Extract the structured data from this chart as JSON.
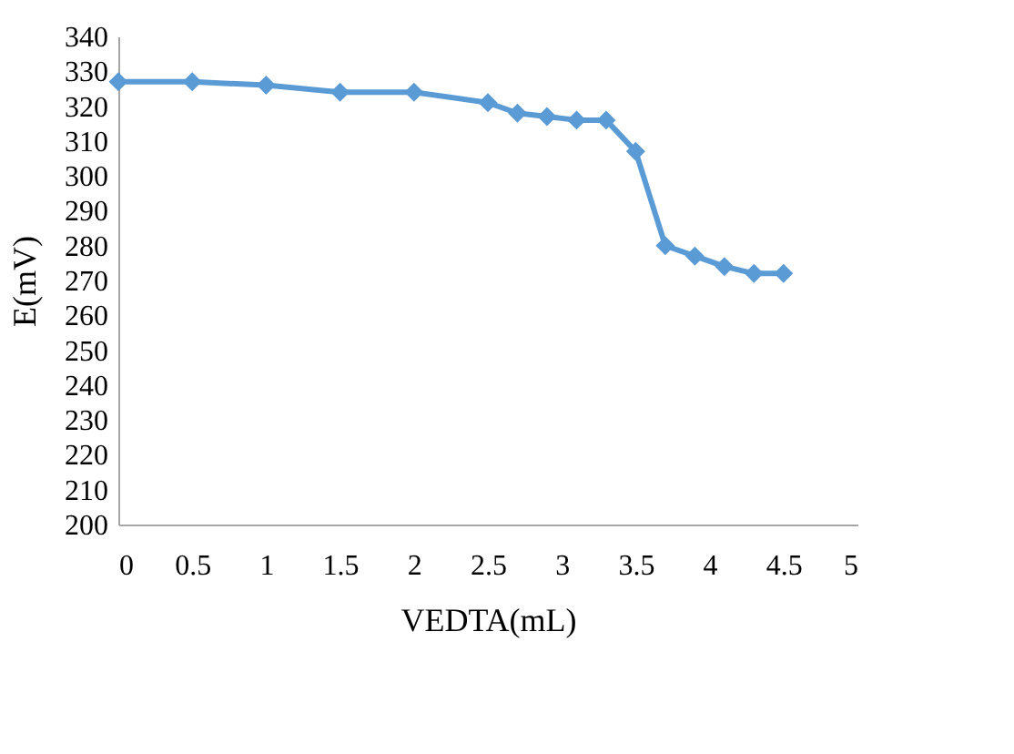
{
  "chart_data": {
    "type": "line",
    "xlabel": "VEDTA(mL)",
    "ylabel": "E(mV)",
    "x": [
      0,
      0.5,
      1,
      1.5,
      2,
      2.5,
      2.7,
      2.9,
      3.1,
      3.3,
      3.5,
      3.7,
      3.9,
      4.1,
      4.3,
      4.5
    ],
    "series": [
      {
        "color": "#5b9bd5",
        "values": [
          327,
          327,
          326,
          324,
          324,
          321,
          318,
          317,
          316,
          316,
          307,
          280,
          277,
          274,
          272,
          272
        ]
      }
    ],
    "xlim": [
      0,
      5
    ],
    "xticks": [
      0,
      0.5,
      1,
      1.5,
      2,
      2.5,
      3,
      3.5,
      4,
      4.5,
      5
    ],
    "ylim": [
      200,
      340
    ],
    "yticks": [
      200,
      210,
      220,
      230,
      240,
      250,
      260,
      270,
      280,
      290,
      300,
      310,
      320,
      330,
      340
    ],
    "marker": "diamond",
    "line_style": "solid",
    "grid": false,
    "legend": false
  }
}
